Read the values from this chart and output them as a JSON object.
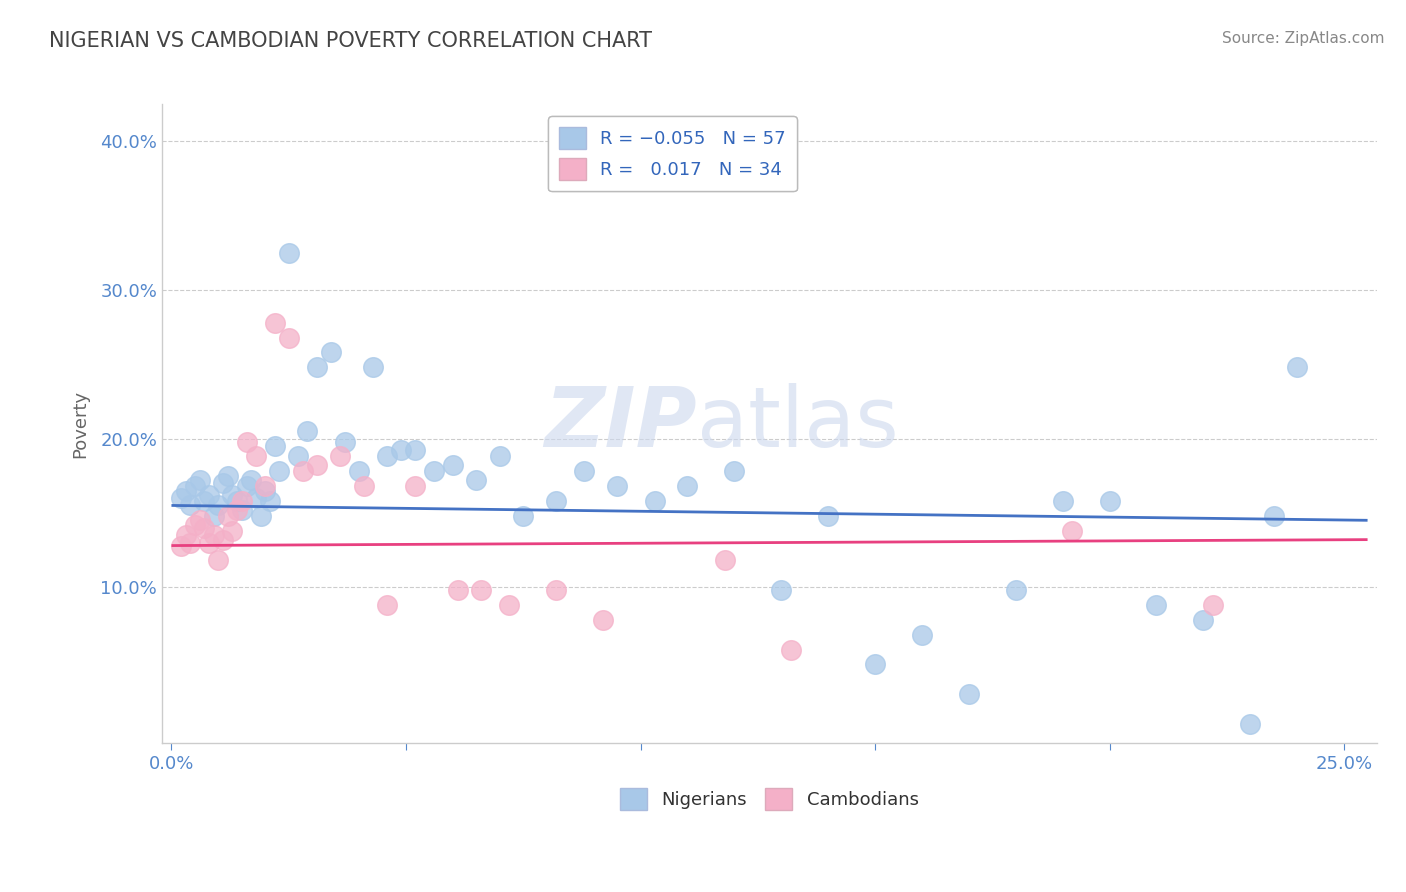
{
  "title": "NIGERIAN VS CAMBODIAN POVERTY CORRELATION CHART",
  "source": "Source: ZipAtlas.com",
  "ylabel": "Poverty",
  "ylim": [
    -0.005,
    0.425
  ],
  "xlim": [
    -0.002,
    0.257
  ],
  "nigerian_R": -0.055,
  "nigerian_N": 57,
  "cambodian_R": 0.017,
  "cambodian_N": 34,
  "nigerian_color": "#a8c8e8",
  "cambodian_color": "#f4b0c8",
  "nigerian_line_color": "#4472c4",
  "cambodian_line_color": "#e84080",
  "watermark_zip": "ZIP",
  "watermark_atlas": "atlas",
  "nigerian_x": [
    0.002,
    0.003,
    0.004,
    0.005,
    0.006,
    0.007,
    0.008,
    0.009,
    0.01,
    0.011,
    0.012,
    0.013,
    0.014,
    0.015,
    0.016,
    0.017,
    0.018,
    0.019,
    0.02,
    0.021,
    0.022,
    0.023,
    0.025,
    0.027,
    0.029,
    0.031,
    0.034,
    0.037,
    0.04,
    0.043,
    0.046,
    0.049,
    0.052,
    0.056,
    0.06,
    0.065,
    0.07,
    0.075,
    0.082,
    0.088,
    0.095,
    0.103,
    0.11,
    0.12,
    0.13,
    0.14,
    0.15,
    0.16,
    0.17,
    0.18,
    0.19,
    0.2,
    0.21,
    0.22,
    0.23,
    0.235,
    0.24
  ],
  "nigerian_y": [
    0.16,
    0.165,
    0.155,
    0.168,
    0.172,
    0.158,
    0.162,
    0.148,
    0.155,
    0.17,
    0.175,
    0.162,
    0.158,
    0.152,
    0.168,
    0.172,
    0.16,
    0.148,
    0.165,
    0.158,
    0.195,
    0.178,
    0.325,
    0.188,
    0.205,
    0.248,
    0.258,
    0.198,
    0.178,
    0.248,
    0.188,
    0.192,
    0.192,
    0.178,
    0.182,
    0.172,
    0.188,
    0.148,
    0.158,
    0.178,
    0.168,
    0.158,
    0.168,
    0.178,
    0.098,
    0.148,
    0.048,
    0.068,
    0.028,
    0.098,
    0.158,
    0.158,
    0.088,
    0.078,
    0.008,
    0.148,
    0.248
  ],
  "cambodian_x": [
    0.002,
    0.003,
    0.004,
    0.005,
    0.006,
    0.007,
    0.008,
    0.009,
    0.01,
    0.011,
    0.012,
    0.013,
    0.014,
    0.015,
    0.016,
    0.018,
    0.02,
    0.022,
    0.025,
    0.028,
    0.031,
    0.036,
    0.041,
    0.046,
    0.052,
    0.061,
    0.066,
    0.072,
    0.082,
    0.092,
    0.118,
    0.132,
    0.192,
    0.222
  ],
  "cambodian_y": [
    0.128,
    0.135,
    0.13,
    0.142,
    0.145,
    0.14,
    0.13,
    0.135,
    0.118,
    0.132,
    0.148,
    0.138,
    0.152,
    0.158,
    0.198,
    0.188,
    0.168,
    0.278,
    0.268,
    0.178,
    0.182,
    0.188,
    0.168,
    0.088,
    0.168,
    0.098,
    0.098,
    0.088,
    0.098,
    0.078,
    0.118,
    0.058,
    0.138,
    0.088
  ]
}
